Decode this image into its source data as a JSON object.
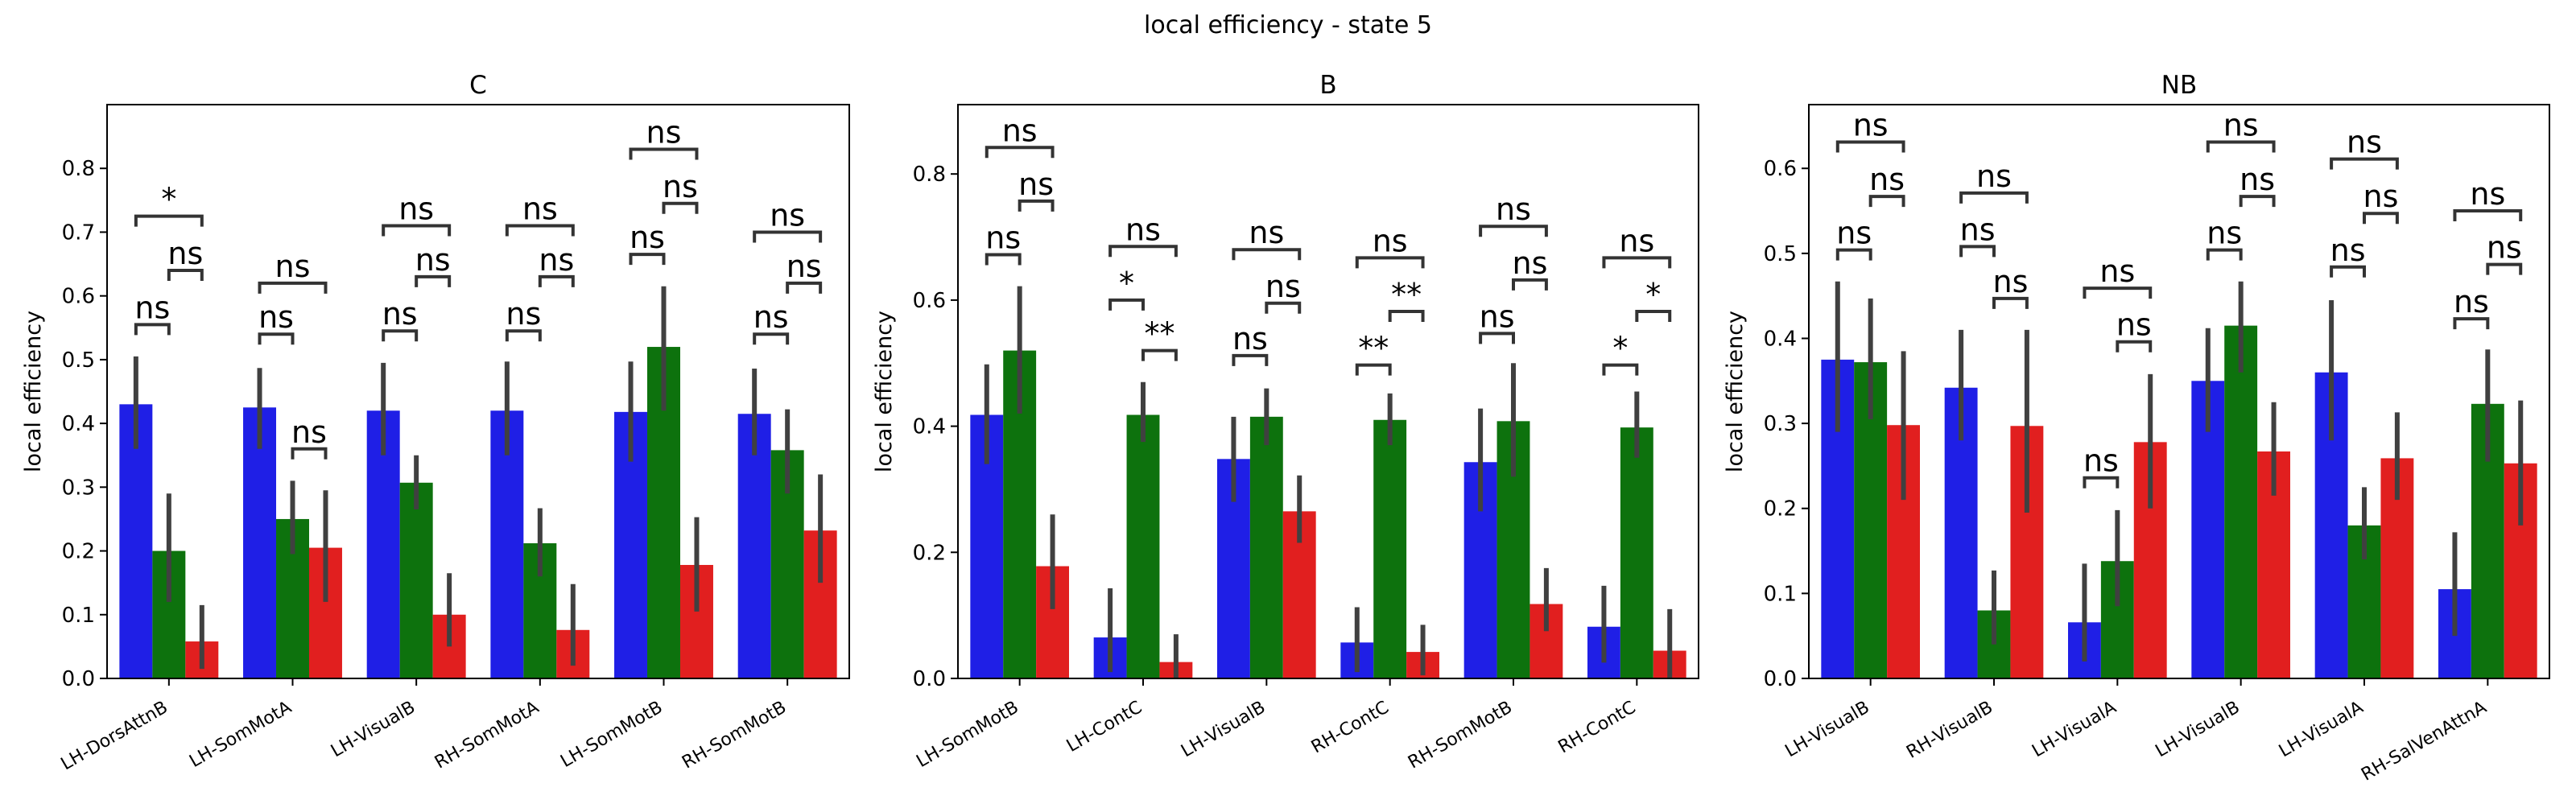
{
  "figure": {
    "suptitle": "local efficiency - state 5"
  },
  "palette": {
    "blue": "#1f1fe6",
    "green": "#0d720d",
    "red": "#e11f1f",
    "err": "#404040"
  },
  "chart_data": [
    {
      "type": "bar",
      "title": "C",
      "ylabel": "local efficiency",
      "ylim": [
        0,
        0.9
      ],
      "yticks": [
        0.0,
        0.1,
        0.2,
        0.3,
        0.4,
        0.5,
        0.6,
        0.7,
        0.8
      ],
      "ytick_labels": [
        "0.0",
        "0.1",
        "0.2",
        "0.3",
        "0.4",
        "0.5",
        "0.6",
        "0.7",
        "0.8"
      ],
      "categories": [
        "LH-DorsAttnB",
        "LH-SomMotA",
        "LH-VisualB",
        "RH-SomMotA",
        "LH-SomMotB",
        "RH-SomMotB"
      ],
      "series": [
        {
          "values": [
            0.43,
            0.425,
            0.42,
            0.42,
            0.418,
            0.415
          ],
          "err_low": [
            0.36,
            0.36,
            0.35,
            0.35,
            0.34,
            0.35
          ],
          "err_high": [
            0.505,
            0.487,
            0.495,
            0.497,
            0.497,
            0.486
          ]
        },
        {
          "values": [
            0.2,
            0.25,
            0.307,
            0.212,
            0.52,
            0.358
          ],
          "err_low": [
            0.12,
            0.195,
            0.265,
            0.16,
            0.42,
            0.29
          ],
          "err_high": [
            0.29,
            0.31,
            0.35,
            0.267,
            0.615,
            0.422
          ]
        },
        {
          "values": [
            0.058,
            0.205,
            0.1,
            0.076,
            0.178,
            0.232
          ],
          "err_low": [
            0.015,
            0.12,
            0.05,
            0.02,
            0.105,
            0.15
          ],
          "err_high": [
            0.115,
            0.295,
            0.165,
            0.148,
            0.253,
            0.32
          ]
        }
      ],
      "annotations": [
        {
          "cat": 0,
          "from": 0,
          "to": 1,
          "level": 0.555,
          "label": "ns"
        },
        {
          "cat": 0,
          "from": 1,
          "to": 2,
          "level": 0.64,
          "label": "ns"
        },
        {
          "cat": 0,
          "from": 0,
          "to": 2,
          "level": 0.725,
          "label": "*"
        },
        {
          "cat": 1,
          "from": 0,
          "to": 1,
          "level": 0.54,
          "label": "ns"
        },
        {
          "cat": 1,
          "from": 1,
          "to": 2,
          "level": 0.36,
          "label": "ns"
        },
        {
          "cat": 1,
          "from": 0,
          "to": 2,
          "level": 0.62,
          "label": "ns"
        },
        {
          "cat": 2,
          "from": 0,
          "to": 1,
          "level": 0.545,
          "label": "ns"
        },
        {
          "cat": 2,
          "from": 1,
          "to": 2,
          "level": 0.63,
          "label": "ns"
        },
        {
          "cat": 2,
          "from": 0,
          "to": 2,
          "level": 0.71,
          "label": "ns"
        },
        {
          "cat": 3,
          "from": 0,
          "to": 1,
          "level": 0.545,
          "label": "ns"
        },
        {
          "cat": 3,
          "from": 1,
          "to": 2,
          "level": 0.63,
          "label": "ns"
        },
        {
          "cat": 3,
          "from": 0,
          "to": 2,
          "level": 0.71,
          "label": "ns"
        },
        {
          "cat": 4,
          "from": 0,
          "to": 1,
          "level": 0.665,
          "label": "ns"
        },
        {
          "cat": 4,
          "from": 1,
          "to": 2,
          "level": 0.745,
          "label": "ns"
        },
        {
          "cat": 4,
          "from": 0,
          "to": 2,
          "level": 0.83,
          "label": "ns"
        },
        {
          "cat": 5,
          "from": 0,
          "to": 1,
          "level": 0.54,
          "label": "ns"
        },
        {
          "cat": 5,
          "from": 1,
          "to": 2,
          "level": 0.62,
          "label": "ns"
        },
        {
          "cat": 5,
          "from": 0,
          "to": 2,
          "level": 0.7,
          "label": "ns"
        }
      ]
    },
    {
      "type": "bar",
      "title": "B",
      "ylabel": "local efficiency",
      "ylim": [
        0,
        0.91
      ],
      "yticks": [
        0.0,
        0.2,
        0.4,
        0.6,
        0.8
      ],
      "ytick_labels": [
        "0.0",
        "0.2",
        "0.4",
        "0.6",
        "0.8"
      ],
      "categories": [
        "LH-SomMotB",
        "LH-ContC",
        "LH-VisualB",
        "RH-ContC",
        "RH-SomMotB",
        "RH-ContC"
      ],
      "series": [
        {
          "values": [
            0.418,
            0.065,
            0.348,
            0.057,
            0.343,
            0.082
          ],
          "err_low": [
            0.34,
            0.01,
            0.28,
            0.01,
            0.265,
            0.025
          ],
          "err_high": [
            0.498,
            0.143,
            0.415,
            0.113,
            0.428,
            0.147
          ]
        },
        {
          "values": [
            0.52,
            0.418,
            0.415,
            0.41,
            0.408,
            0.398
          ],
          "err_low": [
            0.42,
            0.375,
            0.37,
            0.37,
            0.32,
            0.35
          ],
          "err_high": [
            0.622,
            0.47,
            0.46,
            0.452,
            0.5,
            0.455
          ]
        },
        {
          "values": [
            0.178,
            0.026,
            0.265,
            0.042,
            0.118,
            0.044
          ],
          "err_low": [
            0.11,
            0.0,
            0.215,
            0.005,
            0.075,
            0.0
          ],
          "err_high": [
            0.26,
            0.07,
            0.322,
            0.085,
            0.175,
            0.11
          ]
        }
      ],
      "annotations": [
        {
          "cat": 0,
          "from": 0,
          "to": 1,
          "level": 0.672,
          "label": "ns"
        },
        {
          "cat": 0,
          "from": 1,
          "to": 2,
          "level": 0.757,
          "label": "ns"
        },
        {
          "cat": 0,
          "from": 0,
          "to": 2,
          "level": 0.842,
          "label": "ns"
        },
        {
          "cat": 1,
          "from": 0,
          "to": 1,
          "level": 0.6,
          "label": "*"
        },
        {
          "cat": 1,
          "from": 1,
          "to": 2,
          "level": 0.52,
          "label": "**"
        },
        {
          "cat": 1,
          "from": 0,
          "to": 2,
          "level": 0.685,
          "label": "ns"
        },
        {
          "cat": 2,
          "from": 0,
          "to": 1,
          "level": 0.512,
          "label": "ns"
        },
        {
          "cat": 2,
          "from": 1,
          "to": 2,
          "level": 0.595,
          "label": "ns"
        },
        {
          "cat": 2,
          "from": 0,
          "to": 2,
          "level": 0.68,
          "label": "ns"
        },
        {
          "cat": 3,
          "from": 0,
          "to": 1,
          "level": 0.497,
          "label": "**"
        },
        {
          "cat": 3,
          "from": 1,
          "to": 2,
          "level": 0.582,
          "label": "**"
        },
        {
          "cat": 3,
          "from": 0,
          "to": 2,
          "level": 0.667,
          "label": "ns"
        },
        {
          "cat": 4,
          "from": 0,
          "to": 1,
          "level": 0.547,
          "label": "ns"
        },
        {
          "cat": 4,
          "from": 1,
          "to": 2,
          "level": 0.632,
          "label": "ns"
        },
        {
          "cat": 4,
          "from": 0,
          "to": 2,
          "level": 0.717,
          "label": "ns"
        },
        {
          "cat": 5,
          "from": 0,
          "to": 1,
          "level": 0.497,
          "label": "*"
        },
        {
          "cat": 5,
          "from": 1,
          "to": 2,
          "level": 0.582,
          "label": "*"
        },
        {
          "cat": 5,
          "from": 0,
          "to": 2,
          "level": 0.667,
          "label": "ns"
        }
      ]
    },
    {
      "type": "bar",
      "title": "NB",
      "ylabel": "local efficiency",
      "ylim": [
        0,
        0.675
      ],
      "yticks": [
        0.0,
        0.1,
        0.2,
        0.3,
        0.4,
        0.5,
        0.6
      ],
      "ytick_labels": [
        "0.0",
        "0.1",
        "0.2",
        "0.3",
        "0.4",
        "0.5",
        "0.6"
      ],
      "categories": [
        "LH-VisualB",
        "RH-VisualB",
        "LH-VisualA",
        "LH-VisualB",
        "LH-VisualA",
        "RH-SalVenAttnA"
      ],
      "series": [
        {
          "values": [
            0.375,
            0.342,
            0.066,
            0.35,
            0.36,
            0.105
          ],
          "err_low": [
            0.29,
            0.28,
            0.02,
            0.29,
            0.28,
            0.05
          ],
          "err_high": [
            0.467,
            0.41,
            0.135,
            0.412,
            0.445,
            0.172
          ]
        },
        {
          "values": [
            0.372,
            0.08,
            0.138,
            0.415,
            0.18,
            0.323
          ],
          "err_low": [
            0.305,
            0.04,
            0.085,
            0.36,
            0.14,
            0.255
          ],
          "err_high": [
            0.447,
            0.127,
            0.198,
            0.467,
            0.225,
            0.387
          ]
        },
        {
          "values": [
            0.298,
            0.297,
            0.278,
            0.267,
            0.259,
            0.253
          ],
          "err_low": [
            0.21,
            0.195,
            0.2,
            0.215,
            0.21,
            0.18
          ],
          "err_high": [
            0.385,
            0.41,
            0.358,
            0.325,
            0.313,
            0.327
          ]
        }
      ],
      "annotations": [
        {
          "cat": 0,
          "from": 0,
          "to": 1,
          "level": 0.504,
          "label": "ns"
        },
        {
          "cat": 0,
          "from": 1,
          "to": 2,
          "level": 0.567,
          "label": "ns"
        },
        {
          "cat": 0,
          "from": 0,
          "to": 2,
          "level": 0.631,
          "label": "ns"
        },
        {
          "cat": 1,
          "from": 0,
          "to": 1,
          "level": 0.508,
          "label": "ns"
        },
        {
          "cat": 1,
          "from": 1,
          "to": 2,
          "level": 0.447,
          "label": "ns"
        },
        {
          "cat": 1,
          "from": 0,
          "to": 2,
          "level": 0.571,
          "label": "ns"
        },
        {
          "cat": 2,
          "from": 0,
          "to": 1,
          "level": 0.236,
          "label": "ns"
        },
        {
          "cat": 2,
          "from": 1,
          "to": 2,
          "level": 0.396,
          "label": "ns"
        },
        {
          "cat": 2,
          "from": 0,
          "to": 2,
          "level": 0.459,
          "label": "ns"
        },
        {
          "cat": 3,
          "from": 0,
          "to": 1,
          "level": 0.504,
          "label": "ns"
        },
        {
          "cat": 3,
          "from": 1,
          "to": 2,
          "level": 0.567,
          "label": "ns"
        },
        {
          "cat": 3,
          "from": 0,
          "to": 2,
          "level": 0.631,
          "label": "ns"
        },
        {
          "cat": 4,
          "from": 0,
          "to": 1,
          "level": 0.484,
          "label": "ns"
        },
        {
          "cat": 4,
          "from": 1,
          "to": 2,
          "level": 0.547,
          "label": "ns"
        },
        {
          "cat": 4,
          "from": 0,
          "to": 2,
          "level": 0.611,
          "label": "ns"
        },
        {
          "cat": 5,
          "from": 0,
          "to": 1,
          "level": 0.423,
          "label": "ns"
        },
        {
          "cat": 5,
          "from": 1,
          "to": 2,
          "level": 0.487,
          "label": "ns"
        },
        {
          "cat": 5,
          "from": 0,
          "to": 2,
          "level": 0.55,
          "label": "ns"
        }
      ]
    }
  ]
}
